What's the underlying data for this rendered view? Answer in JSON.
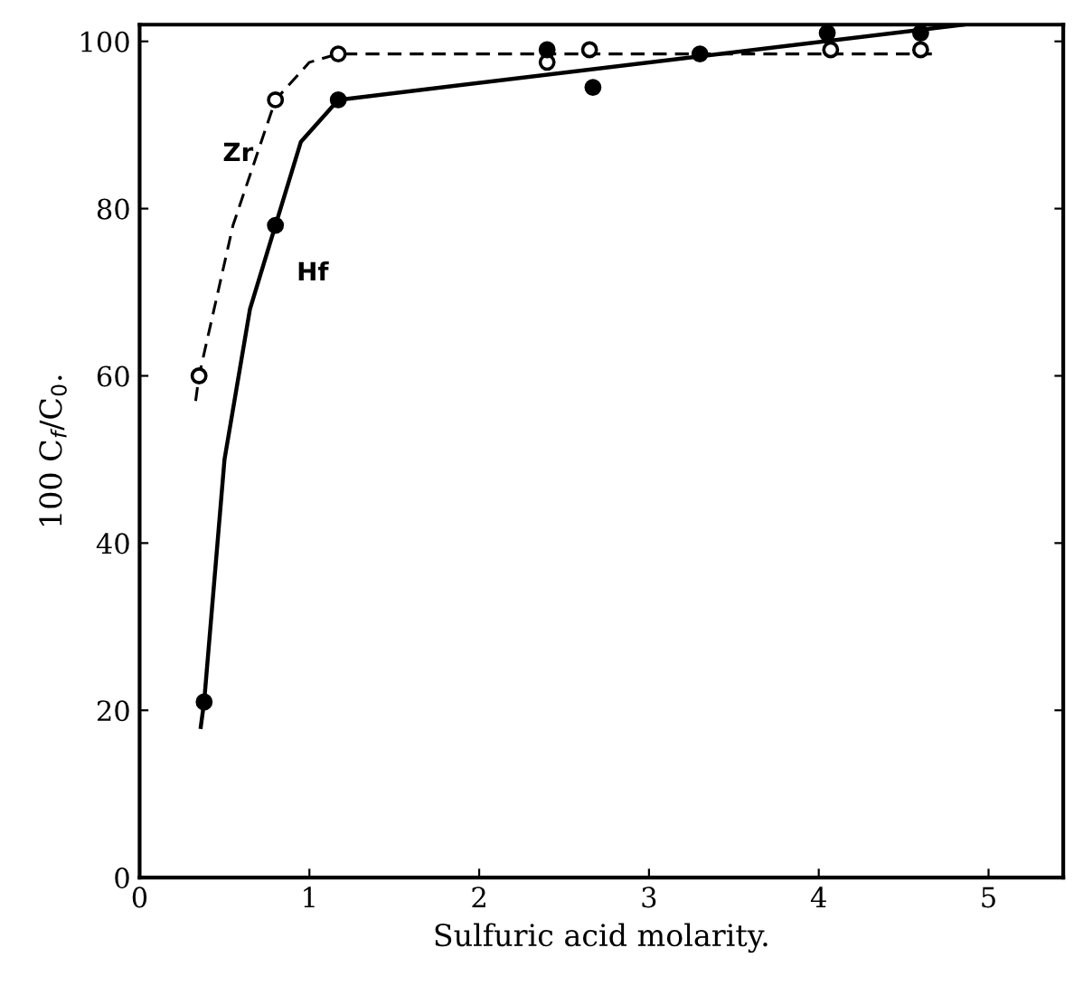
{
  "chart_data": {
    "type": "scatter",
    "xlabel": "Sulfuric acid molarity.",
    "ylabel": "100 C$_{f}$/C$_{0}$.",
    "xlim": [
      0,
      5.44
    ],
    "ylim": [
      0,
      102
    ],
    "xticks": [
      0,
      1,
      2,
      3,
      4,
      5
    ],
    "yticks": [
      0,
      20,
      40,
      60,
      80,
      100
    ],
    "grid": false,
    "series": [
      {
        "type": "line",
        "color": "#000000",
        "line_style": "dashed",
        "marker": "none",
        "x": [
          0.33,
          0.35,
          0.55,
          0.8,
          1.0,
          1.17,
          4.7
        ],
        "values": [
          57,
          60,
          78,
          93,
          97.5,
          98.5,
          98.5
        ]
      },
      {
        "type": "line",
        "color": "#000000",
        "line_style": "solid",
        "marker": "none",
        "x": [
          0.36,
          0.38,
          0.5,
          0.65,
          0.8,
          0.95,
          1.17,
          4.85
        ],
        "values": [
          18,
          21,
          50,
          68,
          78,
          88,
          93,
          102
        ]
      },
      {
        "color": "#ffffff",
        "marker": "circle",
        "x": [
          0.35,
          0.8,
          1.17,
          2.4,
          2.65,
          4.07,
          4.6
        ],
        "values": [
          60,
          93,
          98.5,
          97.5,
          99,
          99,
          99
        ]
      },
      {
        "color": "#000000",
        "marker": "circle",
        "x": [
          0.38,
          0.8,
          1.17,
          2.4,
          2.67,
          3.3,
          4.05,
          4.6
        ],
        "values": [
          21,
          78,
          93,
          99,
          94.5,
          98.5,
          101,
          101
        ]
      }
    ],
    "annotations": [
      "Zr",
      "Hf"
    ]
  }
}
